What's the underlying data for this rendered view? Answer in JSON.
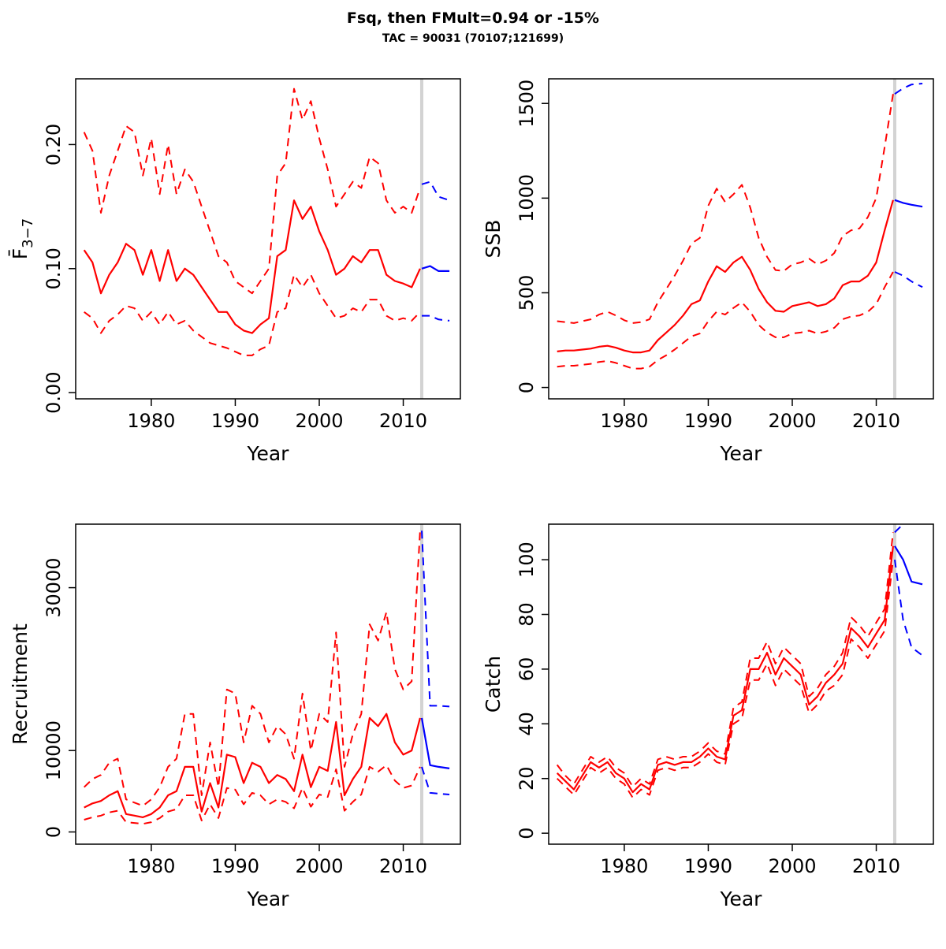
{
  "header": {
    "title": "Fsq, then FMult=0.94 or -15%",
    "subtitle": "TAC = 90031 (70107;121699)"
  },
  "colors": {
    "historical": "#FF0000",
    "projection": "#0000FF",
    "vline": "#D3D3D3",
    "axis": "#000000"
  },
  "years_historical": [
    1972,
    1973,
    1974,
    1975,
    1976,
    1977,
    1978,
    1979,
    1980,
    1981,
    1982,
    1983,
    1984,
    1985,
    1986,
    1987,
    1988,
    1989,
    1990,
    1991,
    1992,
    1993,
    1994,
    1995,
    1996,
    1997,
    1998,
    1999,
    2000,
    2001,
    2002,
    2003,
    2004,
    2005,
    2006,
    2007,
    2008,
    2009,
    2010,
    2011,
    2012
  ],
  "years_projection": [
    2012.2,
    2013.2,
    2014.2,
    2015.5
  ],
  "chart_data": [
    {
      "type": "line",
      "name": "fbar",
      "xlabel": "Year",
      "ylabel": "F̄",
      "ylabel_sub": "3−7",
      "xlim": [
        1971,
        2016.8
      ],
      "ylim": [
        -0.005,
        0.253
      ],
      "xticks": [
        1980,
        1990,
        2000,
        2010
      ],
      "yticks": [
        0,
        0.1,
        0.2
      ],
      "ytick_labels": [
        "0.00",
        "0.10",
        "0.20"
      ],
      "vline_x": 2012.2,
      "grid": false,
      "series": [
        {
          "name": "median-historical",
          "color": "historical",
          "dash": false,
          "phase": "hist",
          "values": [
            0.115,
            0.105,
            0.08,
            0.095,
            0.105,
            0.12,
            0.115,
            0.095,
            0.115,
            0.09,
            0.115,
            0.09,
            0.1,
            0.095,
            0.085,
            0.075,
            0.065,
            0.065,
            0.055,
            0.05,
            0.048,
            0.055,
            0.06,
            0.11,
            0.115,
            0.155,
            0.14,
            0.15,
            0.13,
            0.115,
            0.095,
            0.1,
            0.11,
            0.105,
            0.115,
            0.115,
            0.095,
            0.09,
            0.088,
            0.085,
            0.1
          ]
        },
        {
          "name": "upper-ci-historical",
          "color": "historical",
          "dash": true,
          "phase": "hist",
          "values": [
            0.21,
            0.195,
            0.145,
            0.175,
            0.195,
            0.215,
            0.21,
            0.175,
            0.205,
            0.16,
            0.2,
            0.16,
            0.18,
            0.17,
            0.15,
            0.13,
            0.11,
            0.105,
            0.09,
            0.085,
            0.08,
            0.09,
            0.1,
            0.175,
            0.185,
            0.245,
            0.22,
            0.235,
            0.205,
            0.18,
            0.15,
            0.16,
            0.17,
            0.165,
            0.19,
            0.185,
            0.155,
            0.145,
            0.15,
            0.145,
            0.165
          ]
        },
        {
          "name": "lower-ci-historical",
          "color": "historical",
          "dash": true,
          "phase": "hist",
          "values": [
            0.065,
            0.06,
            0.048,
            0.058,
            0.063,
            0.07,
            0.068,
            0.058,
            0.065,
            0.055,
            0.065,
            0.055,
            0.058,
            0.05,
            0.045,
            0.04,
            0.038,
            0.036,
            0.033,
            0.03,
            0.03,
            0.035,
            0.038,
            0.065,
            0.068,
            0.095,
            0.085,
            0.095,
            0.08,
            0.07,
            0.06,
            0.062,
            0.068,
            0.065,
            0.075,
            0.075,
            0.062,
            0.058,
            0.06,
            0.058,
            0.065
          ]
        },
        {
          "name": "median-projection",
          "color": "projection",
          "dash": false,
          "phase": "proj",
          "values": [
            0.1,
            0.102,
            0.098,
            0.098
          ]
        },
        {
          "name": "upper-ci-projection",
          "color": "projection",
          "dash": true,
          "phase": "proj",
          "values": [
            0.168,
            0.17,
            0.158,
            0.155
          ]
        },
        {
          "name": "lower-ci-projection",
          "color": "projection",
          "dash": true,
          "phase": "proj",
          "values": [
            0.062,
            0.062,
            0.059,
            0.058
          ]
        }
      ]
    },
    {
      "type": "line",
      "name": "ssb",
      "xlabel": "Year",
      "ylabel": "SSB",
      "xlim": [
        1971,
        2016.8
      ],
      "ylim": [
        -60,
        1630
      ],
      "xticks": [
        1980,
        1990,
        2000,
        2010
      ],
      "yticks": [
        0,
        500,
        1000,
        1500
      ],
      "ytick_labels": [
        "0",
        "500",
        "1000",
        "1500"
      ],
      "vline_x": 2012.2,
      "grid": false,
      "series": [
        {
          "name": "median-historical",
          "color": "historical",
          "dash": false,
          "phase": "hist",
          "values": [
            190,
            195,
            195,
            200,
            205,
            215,
            220,
            210,
            195,
            185,
            185,
            195,
            250,
            290,
            330,
            380,
            440,
            460,
            560,
            640,
            610,
            660,
            690,
            620,
            520,
            450,
            405,
            400,
            430,
            440,
            450,
            430,
            440,
            470,
            540,
            560,
            560,
            590,
            660,
            830,
            990
          ]
        },
        {
          "name": "upper-ci-historical",
          "color": "historical",
          "dash": true,
          "phase": "hist",
          "values": [
            350,
            345,
            340,
            350,
            360,
            385,
            400,
            380,
            355,
            340,
            345,
            360,
            450,
            520,
            590,
            670,
            760,
            790,
            960,
            1050,
            980,
            1020,
            1070,
            950,
            790,
            690,
            620,
            615,
            650,
            660,
            680,
            650,
            670,
            710,
            800,
            830,
            840,
            900,
            1000,
            1270,
            1550
          ]
        },
        {
          "name": "lower-ci-historical",
          "color": "historical",
          "dash": true,
          "phase": "hist",
          "values": [
            110,
            115,
            115,
            120,
            125,
            135,
            140,
            130,
            115,
            100,
            100,
            110,
            145,
            170,
            200,
            235,
            270,
            285,
            350,
            400,
            385,
            420,
            450,
            400,
            330,
            290,
            265,
            265,
            285,
            290,
            300,
            285,
            295,
            315,
            360,
            375,
            380,
            400,
            440,
            530,
            610
          ]
        },
        {
          "name": "median-projection",
          "color": "projection",
          "dash": false,
          "phase": "proj",
          "values": [
            990,
            975,
            965,
            955
          ]
        },
        {
          "name": "upper-ci-projection",
          "color": "projection",
          "dash": true,
          "phase": "proj",
          "values": [
            1550,
            1580,
            1600,
            1605
          ]
        },
        {
          "name": "lower-ci-projection",
          "color": "projection",
          "dash": true,
          "phase": "proj",
          "values": [
            610,
            590,
            560,
            530
          ]
        }
      ]
    },
    {
      "type": "line",
      "name": "recruitment",
      "xlabel": "Year",
      "ylabel": "Recruitment",
      "xlim": [
        1971,
        2016.8
      ],
      "ylim": [
        -1500,
        37800
      ],
      "xticks": [
        1980,
        1990,
        2000,
        2010
      ],
      "yticks": [
        0,
        10000,
        30000
      ],
      "ytick_labels": [
        "0",
        "10000",
        "30000"
      ],
      "vline_x": 2012.2,
      "grid": false,
      "series": [
        {
          "name": "median-historical",
          "color": "historical",
          "dash": false,
          "phase": "hist",
          "values": [
            3000,
            3500,
            3800,
            4500,
            5000,
            2200,
            2000,
            1800,
            2200,
            3000,
            4500,
            5000,
            8000,
            8000,
            2500,
            6000,
            3000,
            9500,
            9200,
            6000,
            8500,
            8000,
            6000,
            7000,
            6500,
            5000,
            9500,
            5500,
            8000,
            7500,
            13500,
            4500,
            6500,
            8000,
            14000,
            13000,
            14500,
            11000,
            9500,
            10000,
            14000
          ]
        },
        {
          "name": "upper-ci-historical",
          "color": "historical",
          "dash": true,
          "phase": "hist",
          "values": [
            5500,
            6500,
            7000,
            8500,
            9000,
            4000,
            3600,
            3200,
            4000,
            5500,
            8000,
            9000,
            14500,
            14500,
            4500,
            11000,
            5500,
            17500,
            17000,
            11000,
            15500,
            14500,
            11000,
            13000,
            12000,
            9000,
            17000,
            10000,
            14500,
            13500,
            24500,
            8000,
            12000,
            14500,
            25500,
            23500,
            27000,
            20000,
            17500,
            18500,
            37000
          ]
        },
        {
          "name": "lower-ci-historical",
          "color": "historical",
          "dash": true,
          "phase": "hist",
          "values": [
            1500,
            1800,
            2000,
            2400,
            2600,
            1200,
            1100,
            1000,
            1200,
            1700,
            2500,
            2800,
            4500,
            4500,
            1400,
            3400,
            1700,
            5400,
            5200,
            3400,
            4800,
            4500,
            3400,
            4000,
            3700,
            2900,
            5400,
            3100,
            4600,
            4300,
            7700,
            2600,
            3700,
            4600,
            8000,
            7400,
            8200,
            6300,
            5400,
            5700,
            8000
          ]
        },
        {
          "name": "median-projection",
          "color": "projection",
          "dash": false,
          "phase": "proj",
          "values": [
            14000,
            8200,
            8000,
            7800
          ]
        },
        {
          "name": "upper-ci-projection",
          "color": "projection",
          "dash": true,
          "phase": "proj",
          "values": [
            37000,
            15500,
            15500,
            15400
          ]
        },
        {
          "name": "lower-ci-projection",
          "color": "projection",
          "dash": true,
          "phase": "proj",
          "values": [
            8000,
            4800,
            4700,
            4600
          ]
        }
      ]
    },
    {
      "type": "line",
      "name": "catch",
      "xlabel": "Year",
      "ylabel": "Catch",
      "xlim": [
        1971,
        2016.8
      ],
      "ylim": [
        -4,
        113
      ],
      "xticks": [
        1980,
        1990,
        2000,
        2010
      ],
      "yticks": [
        0,
        20,
        40,
        60,
        80,
        100
      ],
      "ytick_labels": [
        "0",
        "20",
        "40",
        "60",
        "80",
        "100"
      ],
      "vline_x": 2012.2,
      "grid": false,
      "series": [
        {
          "name": "median-historical",
          "color": "historical",
          "dash": false,
          "phase": "hist",
          "values": [
            22,
            19,
            16,
            21,
            26,
            24,
            26,
            22,
            20,
            15,
            18,
            16,
            25,
            26,
            25,
            26,
            26,
            28,
            31,
            28,
            27,
            43,
            45,
            60,
            60,
            66,
            58,
            64,
            61,
            58,
            47,
            50,
            55,
            58,
            62,
            75,
            72,
            68,
            73,
            78,
            105
          ]
        },
        {
          "name": "upper-ci-historical",
          "color": "historical",
          "dash": true,
          "phase": "hist",
          "values": [
            25,
            21,
            18,
            23,
            28,
            26,
            28,
            24,
            22,
            17,
            20,
            18,
            27,
            28,
            27,
            28,
            28,
            30,
            33,
            30,
            29,
            46,
            48,
            64,
            64,
            70,
            62,
            68,
            65,
            62,
            50,
            53,
            58,
            61,
            66,
            79,
            76,
            72,
            77,
            82,
            110
          ]
        },
        {
          "name": "lower-ci-historical",
          "color": "historical",
          "dash": true,
          "phase": "hist",
          "values": [
            20,
            17,
            14,
            19,
            24,
            22,
            24,
            20,
            18,
            13,
            16,
            14,
            23,
            24,
            23,
            24,
            24,
            26,
            29,
            26,
            25,
            40,
            42,
            56,
            56,
            62,
            54,
            60,
            57,
            54,
            44,
            47,
            52,
            54,
            58,
            71,
            68,
            64,
            69,
            74,
            100
          ]
        },
        {
          "name": "median-projection",
          "color": "projection",
          "dash": false,
          "phase": "proj",
          "values": [
            105,
            100,
            92,
            91
          ]
        },
        {
          "name": "upper-ci-projection",
          "color": "projection",
          "dash": true,
          "phase": "proj",
          "values": [
            110,
            113,
            115,
            115
          ]
        },
        {
          "name": "lower-ci-projection",
          "color": "projection",
          "dash": true,
          "phase": "proj",
          "values": [
            100,
            78,
            68,
            65
          ]
        }
      ]
    }
  ]
}
